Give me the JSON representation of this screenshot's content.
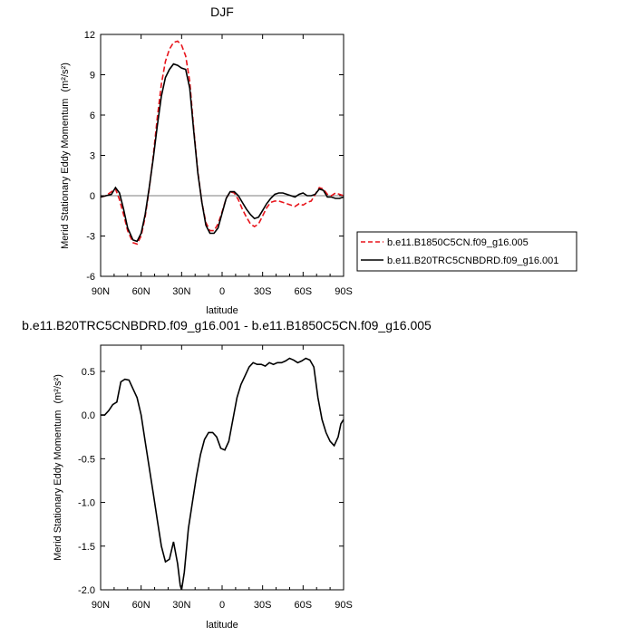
{
  "chart_data": [
    {
      "type": "line",
      "title": "DJF",
      "xlabel": "latitude",
      "ylabel": "Merid Stationary Eddy Momentum",
      "ylabel_unit": "(m²/s²)",
      "x_tick_labels": [
        "90N",
        "60N",
        "30N",
        "0",
        "30S",
        "60S",
        "90S"
      ],
      "x_tick_values": [
        90,
        60,
        30,
        0,
        -30,
        -60,
        -90
      ],
      "xlim": [
        90,
        -90
      ],
      "ylim": [
        -6,
        12
      ],
      "y_ticks": [
        -6,
        -3,
        0,
        3,
        6,
        9,
        12
      ],
      "legend_position": "right",
      "series": [
        {
          "name": "b.e11.B1850C5CN.f09_g16.005",
          "color": "#e8141b",
          "dash": "dashed",
          "x": [
            90,
            86,
            82,
            79,
            76,
            73,
            70,
            66,
            63,
            60,
            57,
            54,
            51,
            48,
            45,
            42,
            39,
            36,
            33,
            30,
            27,
            24,
            21,
            18,
            15,
            12,
            9,
            6,
            3,
            0,
            -3,
            -6,
            -9,
            -12,
            -15,
            -18,
            -21,
            -24,
            -27,
            -30,
            -33,
            -36,
            -39,
            -42,
            -45,
            -48,
            -51,
            -54,
            -57,
            -60,
            -63,
            -66,
            -69,
            -72,
            -75,
            -78,
            -81,
            -84,
            -87,
            -90
          ],
          "y": [
            -0.1,
            0.0,
            0.3,
            0.5,
            -0.3,
            -1.4,
            -2.6,
            -3.5,
            -3.6,
            -3.0,
            -1.6,
            0.5,
            3.0,
            5.8,
            8.3,
            10.0,
            10.9,
            11.4,
            11.5,
            11.2,
            10.4,
            8.5,
            5.0,
            1.8,
            -0.5,
            -2.0,
            -2.6,
            -2.6,
            -2.1,
            -1.2,
            -0.2,
            0.3,
            0.2,
            -0.3,
            -1.0,
            -1.6,
            -2.1,
            -2.3,
            -2.1,
            -1.5,
            -0.9,
            -0.5,
            -0.4,
            -0.4,
            -0.5,
            -0.6,
            -0.7,
            -0.8,
            -0.6,
            -0.7,
            -0.5,
            -0.4,
            0.1,
            0.6,
            0.5,
            0.1,
            0.0,
            0.2,
            0.1,
            0.0
          ]
        },
        {
          "name": "b.e11.B20TRC5CNBDRD.f09_g16.001",
          "color": "#000000",
          "dash": "solid",
          "x": [
            90,
            86,
            82,
            79,
            76,
            73,
            70,
            66,
            63,
            60,
            57,
            54,
            51,
            48,
            45,
            42,
            39,
            36,
            33,
            30,
            27,
            24,
            21,
            18,
            15,
            12,
            9,
            6,
            3,
            0,
            -3,
            -6,
            -9,
            -12,
            -15,
            -18,
            -21,
            -24,
            -27,
            -30,
            -33,
            -36,
            -39,
            -42,
            -45,
            -48,
            -51,
            -54,
            -57,
            -60,
            -63,
            -66,
            -69,
            -72,
            -75,
            -78,
            -81,
            -84,
            -87,
            -90
          ],
          "y": [
            -0.1,
            0.0,
            0.1,
            0.6,
            0.2,
            -1.0,
            -2.4,
            -3.3,
            -3.4,
            -2.8,
            -1.4,
            0.6,
            2.8,
            5.2,
            7.4,
            8.8,
            9.4,
            9.8,
            9.7,
            9.5,
            9.4,
            8.0,
            4.8,
            1.7,
            -0.5,
            -2.2,
            -2.8,
            -2.8,
            -2.4,
            -1.3,
            -0.2,
            0.3,
            0.3,
            0.0,
            -0.5,
            -1.0,
            -1.4,
            -1.7,
            -1.6,
            -1.1,
            -0.6,
            -0.2,
            0.1,
            0.2,
            0.2,
            0.1,
            0.0,
            -0.1,
            0.1,
            0.2,
            0.0,
            0.0,
            0.1,
            0.5,
            0.4,
            -0.1,
            -0.1,
            -0.2,
            -0.2,
            -0.1
          ]
        }
      ]
    },
    {
      "type": "line",
      "title": "b.e11.B20TRC5CNBDRD.f09_g16.001 - b.e11.B1850C5CN.f09_g16.005",
      "xlabel": "latitude",
      "ylabel": "Merid Stationary Eddy Momentum",
      "ylabel_unit": "(m²/s²)",
      "x_tick_labels": [
        "90N",
        "60N",
        "30N",
        "0",
        "30S",
        "60S",
        "90S"
      ],
      "x_tick_values": [
        90,
        60,
        30,
        0,
        -30,
        -60,
        -90
      ],
      "xlim": [
        90,
        -90
      ],
      "ylim": [
        -2.0,
        0.8
      ],
      "y_ticks": [
        -2.0,
        -1.5,
        -1.0,
        -0.5,
        0.0,
        0.5
      ],
      "y_tick_labels": [
        "-2.0",
        "-1.5",
        "-1.0",
        "-0.5",
        "0.0",
        "0.5"
      ],
      "series": [
        {
          "name": "",
          "color": "#000000",
          "dash": "solid",
          "x": [
            90,
            87,
            84,
            81,
            78,
            75,
            72,
            69,
            66,
            63,
            60,
            57,
            54,
            51,
            48,
            45,
            42,
            39,
            36,
            33,
            31,
            30,
            28,
            25,
            22,
            19,
            16,
            13,
            10,
            7,
            4,
            1,
            -2,
            -5,
            -8,
            -11,
            -14,
            -17,
            -20,
            -23,
            -26,
            -29,
            -32,
            -35,
            -38,
            -41,
            -44,
            -47,
            -50,
            -53,
            -56,
            -59,
            -62,
            -65,
            -68,
            -71,
            -74,
            -77,
            -80,
            -83,
            -86,
            -88,
            -90
          ],
          "y": [
            0.0,
            0.0,
            0.05,
            0.12,
            0.15,
            0.38,
            0.41,
            0.4,
            0.3,
            0.2,
            0.0,
            -0.3,
            -0.6,
            -0.9,
            -1.2,
            -1.5,
            -1.68,
            -1.65,
            -1.45,
            -1.7,
            -1.95,
            -2.0,
            -1.8,
            -1.3,
            -1.0,
            -0.7,
            -0.45,
            -0.28,
            -0.2,
            -0.2,
            -0.25,
            -0.38,
            -0.4,
            -0.3,
            -0.05,
            0.2,
            0.35,
            0.45,
            0.55,
            0.6,
            0.58,
            0.58,
            0.56,
            0.6,
            0.58,
            0.6,
            0.6,
            0.62,
            0.65,
            0.63,
            0.6,
            0.62,
            0.65,
            0.63,
            0.55,
            0.2,
            -0.05,
            -0.2,
            -0.3,
            -0.35,
            -0.25,
            -0.1,
            -0.05
          ]
        }
      ]
    }
  ]
}
